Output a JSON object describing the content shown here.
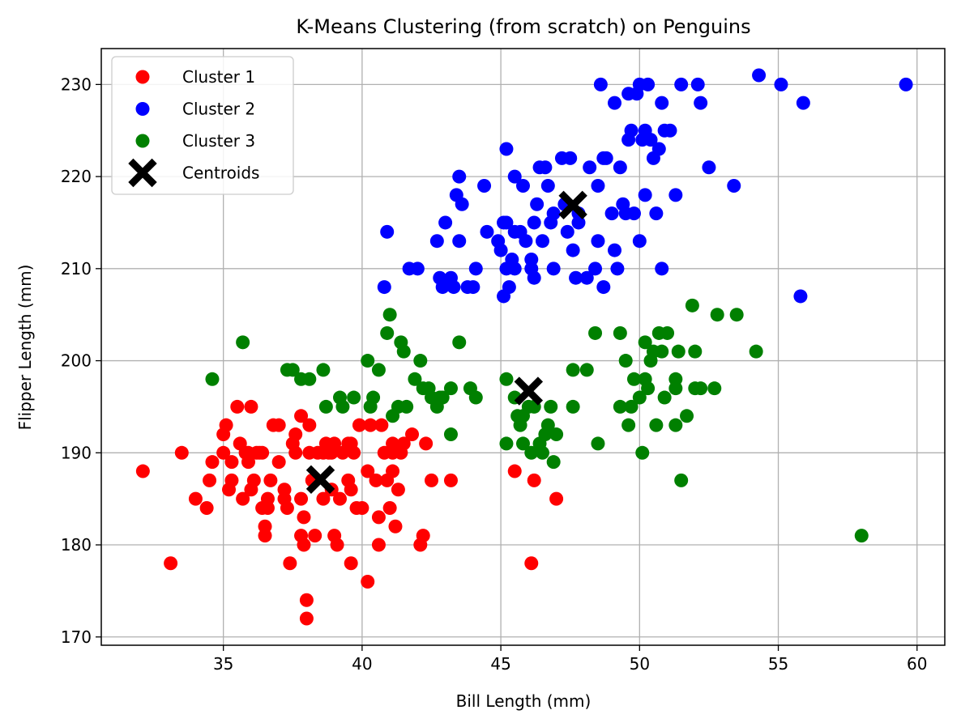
{
  "chart_data": {
    "type": "scatter",
    "title": "K-Means Clustering (from scratch) on Penguins",
    "xlabel": "Bill Length (mm)",
    "ylabel": "Flipper Length (mm)",
    "xlim": [
      30.6,
      61.0
    ],
    "ylim": [
      169.1,
      233.9
    ],
    "xticks": [
      35,
      40,
      45,
      50,
      55,
      60
    ],
    "yticks": [
      170,
      180,
      190,
      200,
      210,
      220,
      230
    ],
    "grid": true,
    "legend_position": "top-left",
    "series": [
      {
        "name": "Cluster 1",
        "color": "#ff0000",
        "marker": "circle",
        "points": [
          [
            32.1,
            188
          ],
          [
            33.1,
            178
          ],
          [
            33.5,
            190
          ],
          [
            34.0,
            185
          ],
          [
            34.4,
            184
          ],
          [
            34.5,
            187
          ],
          [
            34.6,
            189
          ],
          [
            35.0,
            190
          ],
          [
            35.0,
            192
          ],
          [
            35.1,
            193
          ],
          [
            35.2,
            186
          ],
          [
            35.3,
            187
          ],
          [
            35.5,
            195
          ],
          [
            35.6,
            191
          ],
          [
            35.7,
            185
          ],
          [
            35.8,
            190
          ],
          [
            35.9,
            189
          ],
          [
            36.0,
            186
          ],
          [
            36.0,
            195
          ],
          [
            36.1,
            187
          ],
          [
            36.2,
            190
          ],
          [
            36.4,
            190
          ],
          [
            36.4,
            184
          ],
          [
            36.5,
            182
          ],
          [
            36.5,
            181
          ],
          [
            36.6,
            184
          ],
          [
            36.6,
            185
          ],
          [
            36.7,
            187
          ],
          [
            36.8,
            193
          ],
          [
            37.0,
            193
          ],
          [
            37.0,
            189
          ],
          [
            37.2,
            185
          ],
          [
            37.3,
            184
          ],
          [
            37.4,
            178
          ],
          [
            37.5,
            191
          ],
          [
            37.6,
            192
          ],
          [
            37.6,
            190
          ],
          [
            37.8,
            194
          ],
          [
            37.8,
            185
          ],
          [
            37.8,
            181
          ],
          [
            37.9,
            180
          ],
          [
            37.9,
            183
          ],
          [
            38.0,
            174
          ],
          [
            38.0,
            172
          ],
          [
            38.1,
            190
          ],
          [
            38.1,
            193
          ],
          [
            38.2,
            187
          ],
          [
            38.3,
            181
          ],
          [
            38.4,
            190
          ],
          [
            38.6,
            185
          ],
          [
            38.6,
            190
          ],
          [
            38.7,
            191
          ],
          [
            38.8,
            190
          ],
          [
            38.9,
            186
          ],
          [
            39.0,
            181
          ],
          [
            39.0,
            191
          ],
          [
            39.1,
            180
          ],
          [
            39.2,
            185
          ],
          [
            39.3,
            190
          ],
          [
            39.5,
            191
          ],
          [
            39.6,
            186
          ],
          [
            39.6,
            178
          ],
          [
            39.7,
            190
          ],
          [
            39.8,
            184
          ],
          [
            39.9,
            193
          ],
          [
            40.0,
            184
          ],
          [
            40.2,
            188
          ],
          [
            40.2,
            176
          ],
          [
            40.3,
            193
          ],
          [
            40.5,
            187
          ],
          [
            40.6,
            180
          ],
          [
            40.7,
            193
          ],
          [
            40.8,
            190
          ],
          [
            40.9,
            187
          ],
          [
            41.0,
            184
          ],
          [
            41.1,
            191
          ],
          [
            41.1,
            188
          ],
          [
            41.2,
            182
          ],
          [
            41.4,
            190
          ],
          [
            41.5,
            191
          ],
          [
            41.8,
            192
          ],
          [
            42.1,
            180
          ],
          [
            42.2,
            181
          ],
          [
            42.3,
            191
          ],
          [
            42.5,
            187
          ],
          [
            43.2,
            187
          ],
          [
            45.5,
            188
          ],
          [
            46.2,
            187
          ],
          [
            46.1,
            178
          ],
          [
            47.0,
            185
          ],
          [
            35.9,
            190
          ],
          [
            39.5,
            187
          ],
          [
            38.9,
            190
          ],
          [
            41.1,
            190
          ],
          [
            40.6,
            183
          ],
          [
            36.3,
            190
          ],
          [
            37.2,
            186
          ],
          [
            35.3,
            189
          ],
          [
            39.6,
            191
          ],
          [
            41.3,
            186
          ]
        ]
      },
      {
        "name": "Cluster 2",
        "color": "#0000ff",
        "marker": "circle",
        "points": [
          [
            40.9,
            214
          ],
          [
            40.8,
            208
          ],
          [
            41.7,
            210
          ],
          [
            42.0,
            210
          ],
          [
            42.7,
            213
          ],
          [
            42.8,
            209
          ],
          [
            42.9,
            208
          ],
          [
            43.0,
            215
          ],
          [
            43.2,
            209
          ],
          [
            43.3,
            208
          ],
          [
            43.4,
            218
          ],
          [
            43.5,
            213
          ],
          [
            43.5,
            220
          ],
          [
            43.6,
            217
          ],
          [
            43.8,
            208
          ],
          [
            44.0,
            208
          ],
          [
            44.1,
            210
          ],
          [
            44.4,
            219
          ],
          [
            44.5,
            214
          ],
          [
            44.9,
            213
          ],
          [
            45.0,
            212
          ],
          [
            45.1,
            215
          ],
          [
            45.2,
            210
          ],
          [
            45.2,
            223
          ],
          [
            45.3,
            208
          ],
          [
            45.4,
            211
          ],
          [
            45.5,
            210
          ],
          [
            45.5,
            214
          ],
          [
            45.5,
            220
          ],
          [
            45.7,
            214
          ],
          [
            45.8,
            219
          ],
          [
            45.9,
            213
          ],
          [
            46.1,
            210
          ],
          [
            46.1,
            211
          ],
          [
            46.2,
            209
          ],
          [
            46.2,
            215
          ],
          [
            46.3,
            217
          ],
          [
            46.4,
            221
          ],
          [
            46.5,
            213
          ],
          [
            46.6,
            221
          ],
          [
            46.7,
            219
          ],
          [
            46.8,
            215
          ],
          [
            46.9,
            216
          ],
          [
            47.2,
            222
          ],
          [
            47.3,
            217
          ],
          [
            47.4,
            214
          ],
          [
            47.5,
            222
          ],
          [
            47.6,
            212
          ],
          [
            47.7,
            209
          ],
          [
            47.8,
            215
          ],
          [
            48.1,
            209
          ],
          [
            48.2,
            221
          ],
          [
            48.4,
            210
          ],
          [
            48.5,
            213
          ],
          [
            48.5,
            219
          ],
          [
            48.6,
            230
          ],
          [
            48.7,
            208
          ],
          [
            48.7,
            222
          ],
          [
            48.8,
            222
          ],
          [
            49.0,
            216
          ],
          [
            49.1,
            212
          ],
          [
            49.1,
            228
          ],
          [
            49.2,
            210
          ],
          [
            49.3,
            221
          ],
          [
            49.4,
            217
          ],
          [
            49.5,
            216
          ],
          [
            49.6,
            229
          ],
          [
            49.7,
            225
          ],
          [
            49.8,
            216
          ],
          [
            49.9,
            229
          ],
          [
            50.0,
            230
          ],
          [
            50.0,
            213
          ],
          [
            50.1,
            224
          ],
          [
            50.2,
            218
          ],
          [
            50.3,
            230
          ],
          [
            50.4,
            224
          ],
          [
            50.5,
            222
          ],
          [
            50.6,
            216
          ],
          [
            50.7,
            223
          ],
          [
            50.8,
            210
          ],
          [
            50.8,
            228
          ],
          [
            50.9,
            225
          ],
          [
            51.1,
            225
          ],
          [
            51.3,
            218
          ],
          [
            51.5,
            230
          ],
          [
            52.1,
            230
          ],
          [
            52.2,
            228
          ],
          [
            52.5,
            221
          ],
          [
            53.4,
            219
          ],
          [
            54.3,
            231
          ],
          [
            55.1,
            230
          ],
          [
            55.8,
            207
          ],
          [
            55.9,
            228
          ],
          [
            59.6,
            230
          ],
          [
            45.1,
            207
          ],
          [
            46.9,
            210
          ],
          [
            47.8,
            216
          ],
          [
            49.6,
            224
          ],
          [
            50.2,
            225
          ],
          [
            45.2,
            215
          ]
        ]
      },
      {
        "name": "Cluster 3",
        "color": "#008000",
        "marker": "circle",
        "points": [
          [
            34.6,
            198
          ],
          [
            35.7,
            202
          ],
          [
            37.3,
            199
          ],
          [
            37.5,
            199
          ],
          [
            37.8,
            198
          ],
          [
            38.1,
            198
          ],
          [
            38.6,
            199
          ],
          [
            38.7,
            195
          ],
          [
            39.2,
            196
          ],
          [
            39.3,
            195
          ],
          [
            39.7,
            196
          ],
          [
            40.2,
            200
          ],
          [
            40.3,
            195
          ],
          [
            40.4,
            196
          ],
          [
            40.6,
            199
          ],
          [
            40.9,
            203
          ],
          [
            41.0,
            205
          ],
          [
            41.1,
            194
          ],
          [
            41.3,
            195
          ],
          [
            41.4,
            202
          ],
          [
            41.5,
            201
          ],
          [
            41.6,
            195
          ],
          [
            41.9,
            198
          ],
          [
            42.1,
            200
          ],
          [
            42.2,
            197
          ],
          [
            42.4,
            197
          ],
          [
            42.5,
            196
          ],
          [
            42.7,
            195
          ],
          [
            42.8,
            196
          ],
          [
            42.9,
            196
          ],
          [
            43.2,
            197
          ],
          [
            43.2,
            192
          ],
          [
            43.5,
            202
          ],
          [
            43.9,
            197
          ],
          [
            44.1,
            196
          ],
          [
            45.2,
            191
          ],
          [
            45.2,
            198
          ],
          [
            45.5,
            196
          ],
          [
            45.6,
            194
          ],
          [
            45.7,
            193
          ],
          [
            45.8,
            191
          ],
          [
            46.0,
            195
          ],
          [
            46.1,
            190
          ],
          [
            46.4,
            191
          ],
          [
            46.5,
            190
          ],
          [
            46.6,
            192
          ],
          [
            46.7,
            193
          ],
          [
            46.8,
            195
          ],
          [
            46.9,
            189
          ],
          [
            47.0,
            192
          ],
          [
            47.6,
            195
          ],
          [
            47.6,
            199
          ],
          [
            48.1,
            199
          ],
          [
            48.4,
            203
          ],
          [
            48.5,
            191
          ],
          [
            49.3,
            203
          ],
          [
            49.3,
            195
          ],
          [
            49.5,
            200
          ],
          [
            49.6,
            193
          ],
          [
            49.7,
            195
          ],
          [
            49.8,
            198
          ],
          [
            50.0,
            196
          ],
          [
            50.1,
            190
          ],
          [
            50.2,
            198
          ],
          [
            50.3,
            197
          ],
          [
            50.4,
            200
          ],
          [
            50.5,
            201
          ],
          [
            50.6,
            193
          ],
          [
            50.7,
            203
          ],
          [
            50.8,
            201
          ],
          [
            50.9,
            196
          ],
          [
            51.0,
            203
          ],
          [
            51.3,
            198
          ],
          [
            51.3,
            193
          ],
          [
            51.4,
            201
          ],
          [
            51.5,
            187
          ],
          [
            51.7,
            194
          ],
          [
            51.9,
            206
          ],
          [
            52.0,
            201
          ],
          [
            52.0,
            197
          ],
          [
            52.2,
            197
          ],
          [
            52.7,
            197
          ],
          [
            52.8,
            205
          ],
          [
            53.5,
            205
          ],
          [
            54.2,
            201
          ],
          [
            58.0,
            181
          ],
          [
            46.2,
            195
          ],
          [
            45.8,
            194
          ],
          [
            50.2,
            202
          ],
          [
            51.3,
            197
          ]
        ]
      },
      {
        "name": "Centroids",
        "color": "#000000",
        "marker": "x",
        "points": [
          [
            38.5,
            187.1
          ],
          [
            47.6,
            216.9
          ],
          [
            46.0,
            196.7
          ]
        ]
      }
    ]
  }
}
